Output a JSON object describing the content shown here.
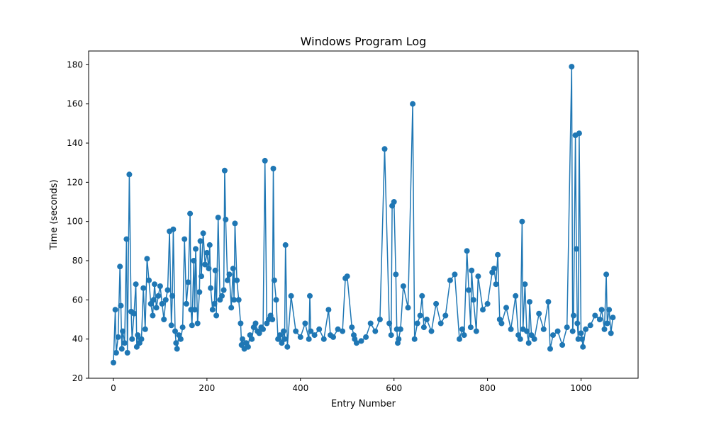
{
  "chart_data": {
    "type": "line",
    "title": "Windows Program Log",
    "xlabel": "Entry Number",
    "ylabel": "Time (seconds)",
    "xlim": [
      -53,
      1122
    ],
    "ylim": [
      20,
      187
    ],
    "xticks": [
      0,
      200,
      400,
      600,
      800,
      1000
    ],
    "yticks": [
      20,
      40,
      60,
      80,
      100,
      120,
      140,
      160,
      180
    ],
    "grid": false,
    "color": "#1f77b4",
    "markers": true,
    "series": [
      {
        "x": [
          0,
          4,
          6,
          10,
          14,
          16,
          18,
          20,
          24,
          28,
          30,
          34,
          38,
          40,
          44,
          48,
          50,
          52,
          56,
          60,
          64,
          68,
          72,
          76,
          80,
          84,
          86,
          88,
          92,
          96,
          100,
          104,
          108,
          112,
          116,
          120,
          124,
          126,
          128,
          132,
          134,
          136,
          140,
          144,
          148,
          152,
          156,
          160,
          164,
          166,
          168,
          172,
          174,
          176,
          180,
          184,
          186,
          188,
          192,
          196,
          200,
          204,
          206,
          208,
          212,
          216,
          218,
          220,
          224,
          228,
          232,
          236,
          238,
          240,
          244,
          248,
          252,
          256,
          258,
          260,
          264,
          268,
          272,
          274,
          276,
          280,
          284,
          288,
          292,
          296,
          300,
          304,
          308,
          312,
          316,
          320,
          324,
          328,
          332,
          336,
          340,
          342,
          344,
          348,
          352,
          356,
          360,
          364,
          366,
          368,
          372,
          380,
          390,
          400,
          410,
          418,
          420,
          422,
          430,
          440,
          450,
          460,
          464,
          470,
          480,
          490,
          496,
          500,
          510,
          514,
          516,
          520,
          530,
          540,
          550,
          560,
          570,
          580,
          590,
          594,
          596,
          600,
          604,
          606,
          608,
          610,
          614,
          620,
          630,
          640,
          644,
          650,
          656,
          660,
          664,
          670,
          680,
          690,
          700,
          710,
          720,
          730,
          740,
          746,
          750,
          756,
          760,
          764,
          766,
          770,
          776,
          780,
          790,
          800,
          810,
          814,
          818,
          822,
          826,
          830,
          840,
          850,
          860,
          866,
          870,
          874,
          876,
          880,
          884,
          888,
          890,
          894,
          900,
          910,
          920,
          930,
          934,
          940,
          950,
          960,
          970,
          980,
          982,
          984,
          988,
          990,
          992,
          994,
          996,
          1000,
          1002,
          1004,
          1010,
          1020,
          1030,
          1040,
          1044,
          1050,
          1054,
          1056,
          1060,
          1064,
          1068
        ],
        "y": [
          28,
          55,
          33,
          41,
          77,
          57,
          35,
          44,
          38,
          91,
          33,
          124,
          54,
          40,
          53,
          68,
          36,
          42,
          38,
          40,
          66,
          45,
          81,
          70,
          58,
          52,
          60,
          68,
          56,
          62,
          67,
          58,
          50,
          60,
          65,
          95,
          47,
          62,
          96,
          44,
          38,
          35,
          42,
          40,
          46,
          91,
          58,
          69,
          104,
          55,
          47,
          80,
          55,
          86,
          48,
          64,
          90,
          72,
          94,
          78,
          84,
          76,
          88,
          66,
          55,
          58,
          75,
          52,
          102,
          60,
          62,
          65,
          126,
          101,
          70,
          73,
          56,
          76,
          60,
          99,
          70,
          60,
          48,
          37,
          40,
          35,
          38,
          36,
          42,
          40,
          46,
          48,
          44,
          43,
          46,
          45,
          131,
          48,
          50,
          52,
          50,
          127,
          70,
          60,
          40,
          42,
          38,
          44,
          40,
          88,
          36,
          62,
          44,
          41,
          48,
          40,
          62,
          44,
          42,
          45,
          40,
          55,
          42,
          41,
          45,
          44,
          71,
          72,
          46,
          42,
          40,
          38,
          39,
          41,
          48,
          44,
          50,
          137,
          48,
          42,
          108,
          110,
          73,
          45,
          38,
          40,
          45,
          67,
          56,
          160,
          40,
          48,
          52,
          62,
          46,
          50,
          44,
          58,
          48,
          52,
          70,
          73,
          40,
          45,
          42,
          85,
          65,
          46,
          75,
          60,
          44,
          72,
          55,
          58,
          74,
          76,
          68,
          83,
          50,
          48,
          56,
          45,
          62,
          42,
          40,
          100,
          45,
          68,
          44,
          38,
          59,
          42,
          40,
          53,
          45,
          59,
          35,
          42,
          44,
          37,
          46,
          179,
          44,
          52,
          144,
          86,
          48,
          40,
          145,
          43,
          40,
          36,
          45,
          47,
          52,
          50,
          55,
          45,
          73,
          48,
          55,
          43,
          51
        ]
      }
    ]
  }
}
